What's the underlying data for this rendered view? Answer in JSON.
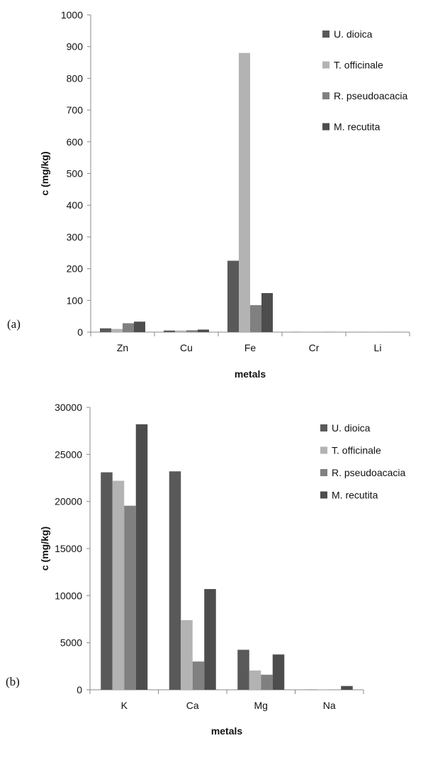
{
  "chart_data": [
    {
      "type": "bar",
      "panel_label": "(a)",
      "categories": [
        "Zn",
        "Cu",
        "Fe",
        "Cr",
        "Li"
      ],
      "series": [
        {
          "name": "U. dioica",
          "values": [
            12,
            5,
            225,
            0.3,
            0.1
          ]
        },
        {
          "name": "T. officinale",
          "values": [
            10,
            5,
            880,
            0.3,
            0.1
          ]
        },
        {
          "name": "R. pseudoacacia",
          "values": [
            28,
            6,
            85,
            0.3,
            0.1
          ]
        },
        {
          "name": "M. recutita",
          "values": [
            33,
            8,
            123,
            0.3,
            0.1
          ]
        }
      ],
      "xlabel": "metals",
      "ylabel": "c (mg/kg)",
      "ylim": [
        0,
        1000
      ],
      "yticks": [
        0,
        100,
        200,
        300,
        400,
        500,
        600,
        700,
        800,
        900,
        1000
      ],
      "grid": false,
      "legend": "top-right",
      "colors": [
        "#595959",
        "#b3b3b3",
        "#808080",
        "#4d4d4d"
      ]
    },
    {
      "type": "bar",
      "panel_label": "(b)",
      "categories": [
        "K",
        "Ca",
        "Mg",
        "Na"
      ],
      "series": [
        {
          "name": "U. dioica",
          "values": [
            23100,
            23200,
            4250,
            20
          ]
        },
        {
          "name": "T. officinale",
          "values": [
            22200,
            7400,
            2050,
            20
          ]
        },
        {
          "name": "R. pseudoacacia",
          "values": [
            19550,
            3000,
            1600,
            20
          ]
        },
        {
          "name": "M. recutita",
          "values": [
            28200,
            10700,
            3750,
            400
          ]
        }
      ],
      "xlabel": "metals",
      "ylabel": "c (mg/kg)",
      "ylim": [
        0,
        30000
      ],
      "yticks": [
        0,
        5000,
        10000,
        15000,
        20000,
        25000,
        30000
      ],
      "grid": false,
      "legend": "top-right",
      "colors": [
        "#595959",
        "#b3b3b3",
        "#808080",
        "#4d4d4d"
      ]
    }
  ]
}
